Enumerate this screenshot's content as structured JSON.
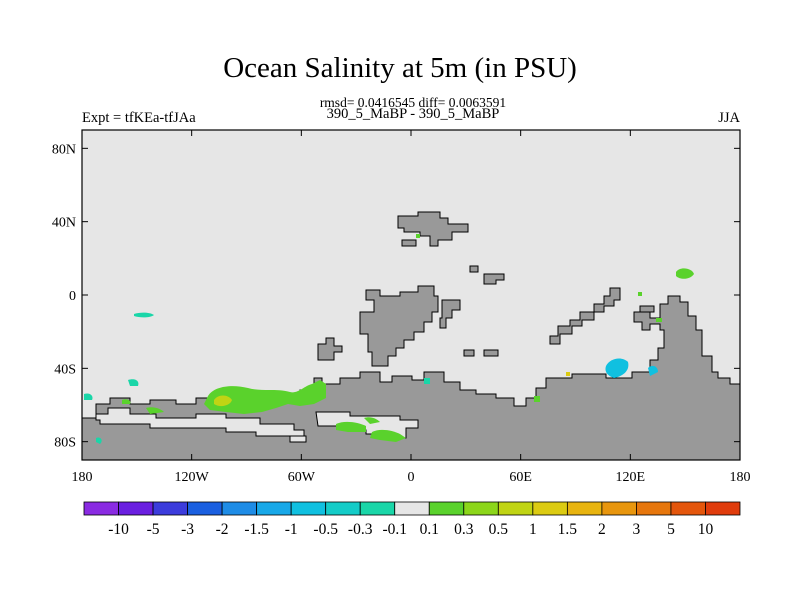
{
  "title": "Ocean Salinity at 5m (in PSU)",
  "stats_line": "rmsd= 0.0416545 diff= 0.0063591",
  "expt_label": "Expt = tfKEa-tfJAa",
  "diff_label": "390_5_MaBP - 390_5_MaBP",
  "season_label": "JJA",
  "chart_data": {
    "type": "heatmap",
    "title": "Ocean Salinity at 5m (in PSU)",
    "xlabel": "",
    "ylabel": "",
    "xlim": [
      -180,
      180
    ],
    "ylim": [
      -90,
      90
    ],
    "x_ticks": [
      {
        "value": -180,
        "label": "180"
      },
      {
        "value": -120,
        "label": "120W"
      },
      {
        "value": -60,
        "label": "60W"
      },
      {
        "value": 0,
        "label": "0"
      },
      {
        "value": 60,
        "label": "60E"
      },
      {
        "value": 120,
        "label": "120E"
      },
      {
        "value": 180,
        "label": "180"
      }
    ],
    "y_ticks": [
      {
        "value": 80,
        "label": "80N"
      },
      {
        "value": 40,
        "label": "40N"
      },
      {
        "value": 0,
        "label": "0"
      },
      {
        "value": -40,
        "label": "40S"
      },
      {
        "value": -80,
        "label": "80S"
      }
    ],
    "colorbar": {
      "labels": [
        "-10",
        "-5",
        "-3",
        "-2",
        "-1.5",
        "-1",
        "-0.5",
        "-0.3",
        "-0.1",
        "0.1",
        "0.3",
        "0.5",
        "1",
        "1.5",
        "2",
        "3",
        "5",
        "10"
      ],
      "colors": [
        "#8a2be2",
        "#6a1fe0",
        "#3c3cdc",
        "#1a5fe0",
        "#1e8ce6",
        "#18a8e8",
        "#10c0e0",
        "#14ccc8",
        "#1ad6a8",
        "#e6e6e6",
        "#5ad22c",
        "#8cd61a",
        "#c0d414",
        "#dccb12",
        "#e8b410",
        "#e8960e",
        "#e6760c",
        "#e4560c",
        "#e03c0c"
      ]
    },
    "background_color": "#e6e6e6",
    "land_color": "#999999",
    "features": [
      {
        "name": "southern_ocean_positive",
        "lon_range": [
          -120,
          -10
        ],
        "lat_range": [
          -70,
          -50
        ],
        "value_range": "0.1 to 0.5"
      },
      {
        "name": "pacific_patch",
        "lon_range": [
          -150,
          -140
        ],
        "lat_range": [
          -12,
          -10
        ],
        "value_range": "-0.3 to -0.1"
      },
      {
        "name": "indian_ocean_patch",
        "lon_range": [
          110,
          120
        ],
        "lat_range": [
          -45,
          -35
        ],
        "value_range": "-1 to -0.3"
      },
      {
        "name": "nw_pacific_patch",
        "lon_range": [
          145,
          155
        ],
        "lat_range": [
          15,
          20
        ],
        "value_range": "0.1 to 0.3"
      }
    ]
  }
}
